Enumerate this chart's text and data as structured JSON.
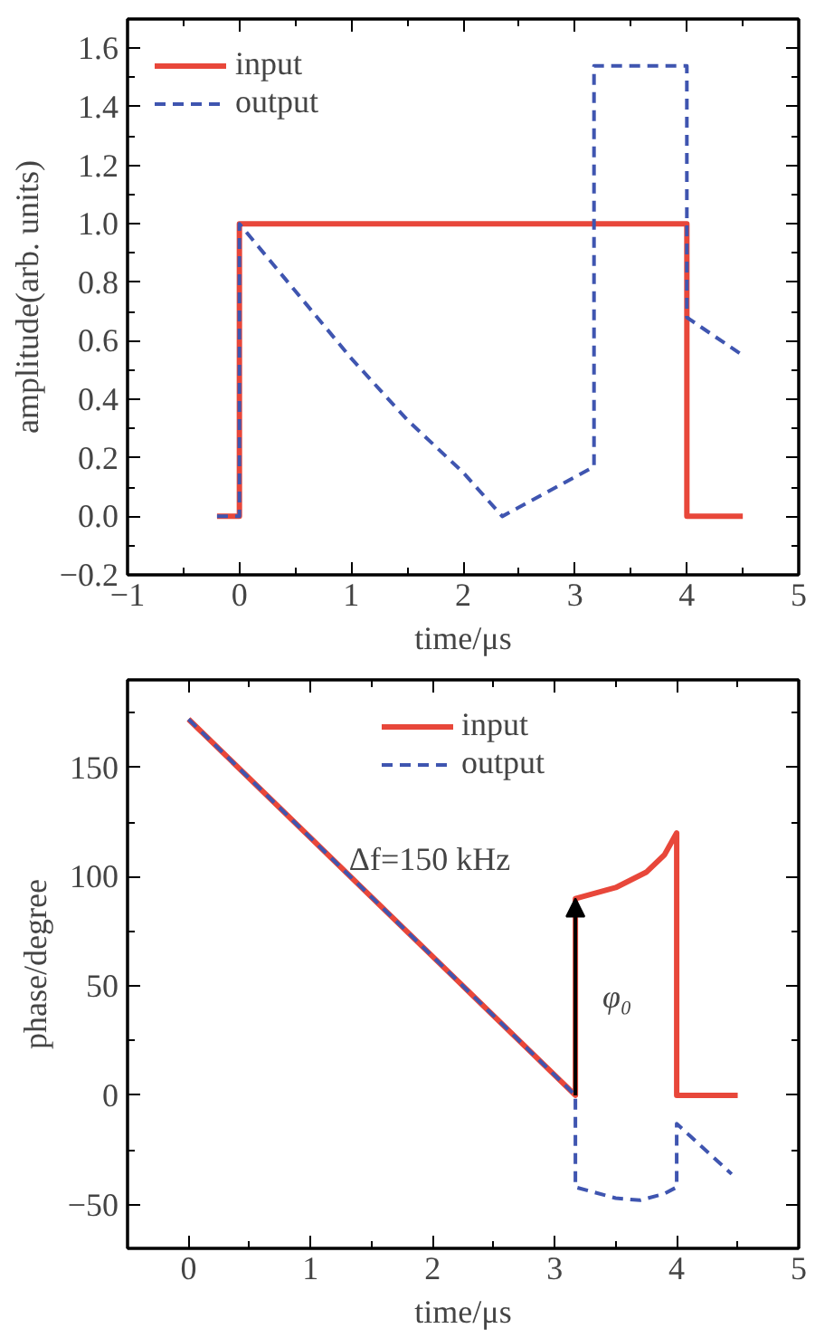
{
  "chart_data": [
    {
      "type": "line",
      "xlabel": "time/μs",
      "ylabel": "amplitude(arb. units)",
      "xlim": [
        -1,
        5
      ],
      "ylim": [
        -0.2,
        1.7
      ],
      "xticks": [
        {
          "value": -1,
          "label": "−1"
        },
        0,
        1,
        2,
        3,
        4,
        5
      ],
      "yticks": [
        {
          "value": -0.2,
          "label": "−0.2"
        },
        {
          "value": 0,
          "label": "0.0"
        },
        0.2,
        0.4,
        0.6,
        0.8,
        {
          "value": 1,
          "label": "1.0"
        },
        1.2,
        1.4,
        1.6
      ],
      "legend": "top left",
      "grid": false,
      "series": [
        {
          "name": "input",
          "color": "#e8473a",
          "line_style": "solid",
          "x": [
            -0.2,
            0,
            0,
            4,
            4,
            4.5
          ],
          "values": [
            0,
            0,
            1,
            1,
            0,
            0
          ]
        },
        {
          "name": "output",
          "color": "#3f55b0",
          "line_style": "dashed",
          "x": [
            -0.2,
            0,
            0,
            0.5,
            1,
            1.5,
            2,
            2.35,
            3.17,
            3.17,
            4,
            4,
            4.5
          ],
          "values": [
            0,
            0,
            1,
            0.77,
            0.54,
            0.33,
            0.15,
            0,
            0.17,
            1.54,
            1.54,
            0.68,
            0.55
          ]
        }
      ]
    },
    {
      "type": "line",
      "xlabel": "time/μs",
      "ylabel": "phase/degree",
      "xlim": [
        -0.5,
        5
      ],
      "ylim": [
        -70,
        190
      ],
      "xticks": [
        0,
        1,
        2,
        3,
        4,
        5
      ],
      "yticks": [
        {
          "value": -50,
          "label": "−50"
        },
        0,
        50,
        100,
        150
      ],
      "legend": "top",
      "grid": false,
      "annotations": [
        "Δf=150 kHz",
        {
          "text": "φ₀",
          "x": 3.17,
          "y": 90
        }
      ],
      "series": [
        {
          "name": "input",
          "color": "#e8473a",
          "line_style": "solid",
          "x": [
            0,
            3.17,
            3.17,
            3.5,
            3.75,
            3.9,
            4,
            4,
            4.5
          ],
          "values": [
            172,
            0,
            90,
            95,
            102,
            110,
            120,
            0,
            0
          ]
        },
        {
          "name": "output",
          "color": "#3f55b0",
          "line_style": "dashed",
          "x": [
            0,
            3.17,
            3.17,
            3.5,
            3.7,
            3.9,
            4,
            4,
            4.45
          ],
          "values": [
            172,
            0,
            -42,
            -47,
            -48,
            -45,
            -42,
            -13,
            -36
          ]
        }
      ]
    }
  ]
}
